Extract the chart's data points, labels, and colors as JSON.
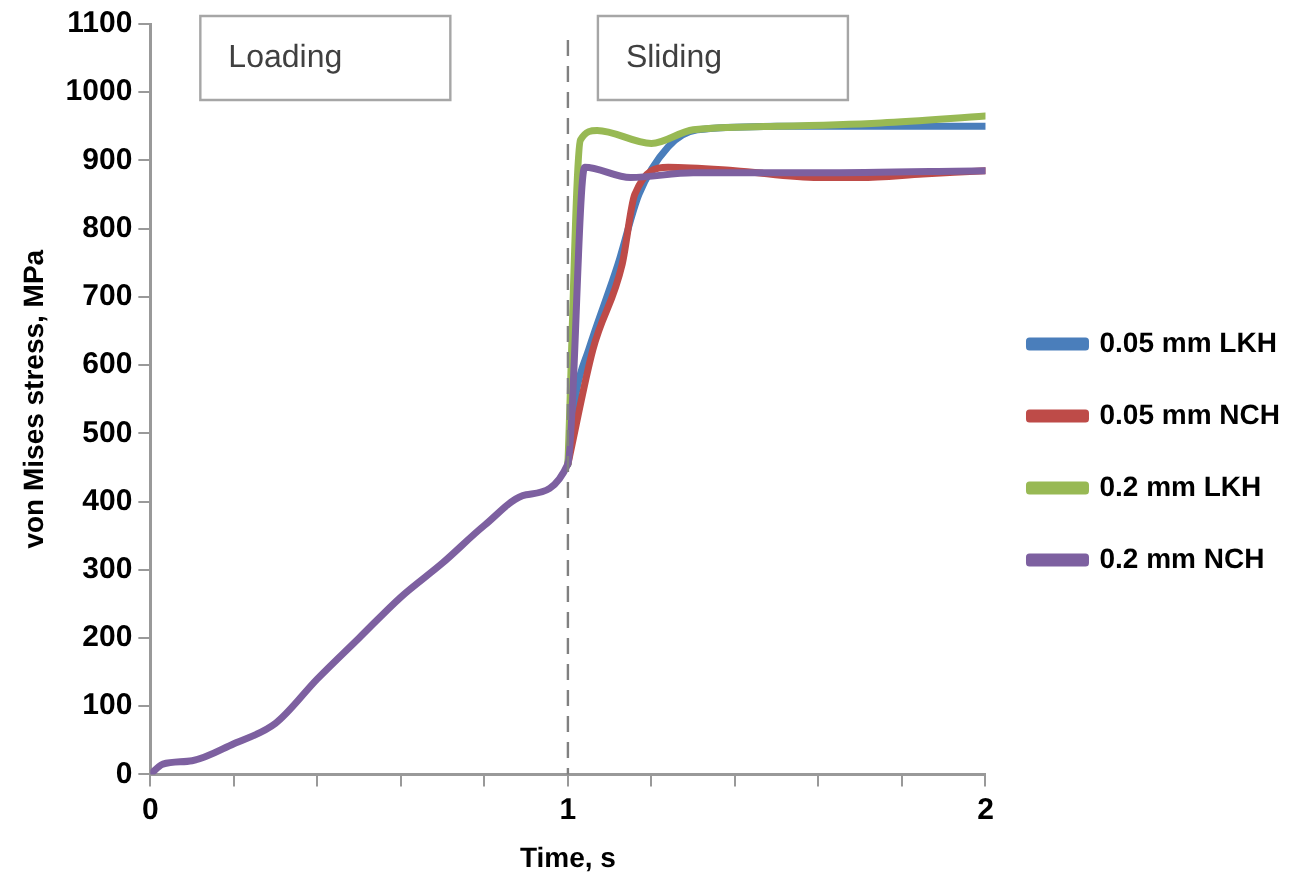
{
  "chart_data": {
    "type": "line",
    "xlabel": "Time, s",
    "ylabel": "von Mises stress, MPa",
    "xlim": [
      0,
      2
    ],
    "ylim": [
      0,
      1100
    ],
    "xticks": [
      0,
      {
        "value": 0.2,
        "label": null
      },
      {
        "value": 0.4,
        "label": null
      },
      {
        "value": 0.6,
        "label": null
      },
      {
        "value": 0.8,
        "label": null
      },
      1,
      {
        "value": 1.2,
        "label": null
      },
      {
        "value": 1.4,
        "label": null
      },
      {
        "value": 1.6,
        "label": null
      },
      {
        "value": 1.8,
        "label": null
      },
      2
    ],
    "yticks": [
      0,
      100,
      200,
      300,
      400,
      500,
      600,
      700,
      800,
      900,
      1000,
      1100
    ],
    "grid": false,
    "legend": "right",
    "marker": "none",
    "line_style": "solid",
    "annotations": [
      "Loading",
      "Sliding"
    ],
    "ref_lines": [
      {
        "axis": "x",
        "value": 1,
        "color": "#808080",
        "line_style": "dashed"
      }
    ],
    "series": [
      {
        "name": "0.05 mm LKH",
        "color": "#4a7ebb",
        "x": [
          1,
          1.02,
          1.05,
          1.12,
          1.17,
          1.24,
          1.31,
          1.5,
          1.75,
          2
        ],
        "values": [
          455,
          560,
          623,
          748,
          850,
          920,
          945,
          950,
          950,
          950
        ]
      },
      {
        "name": "0.05 mm NCH",
        "color": "#be4b48",
        "x": [
          1,
          1.06,
          1.13,
          1.16,
          1.24,
          1.4,
          1.6,
          1.7,
          1.85,
          2
        ],
        "values": [
          455,
          623,
          748,
          850,
          890,
          885,
          875,
          875,
          880,
          885
        ]
      },
      {
        "name": "0.2 mm LKH",
        "color": "#98b954",
        "x": [
          1,
          1.03,
          1.07,
          1.2,
          1.3,
          1.5,
          1.75,
          2
        ],
        "values": [
          455,
          930,
          944,
          925,
          945,
          950,
          955,
          965
        ]
      },
      {
        "name": "0.2 mm NCH",
        "color": "#7d60a0",
        "x": [
          0,
          0.03,
          0.1,
          0.2,
          0.3,
          0.4,
          0.5,
          0.6,
          0.7,
          0.8,
          0.9,
          1,
          1.04,
          1.15,
          1.3,
          1.6,
          2
        ],
        "values": [
          0,
          15,
          20,
          45,
          75,
          140,
          200,
          260,
          310,
          365,
          410,
          455,
          890,
          875,
          882,
          882,
          885
        ]
      }
    ]
  }
}
